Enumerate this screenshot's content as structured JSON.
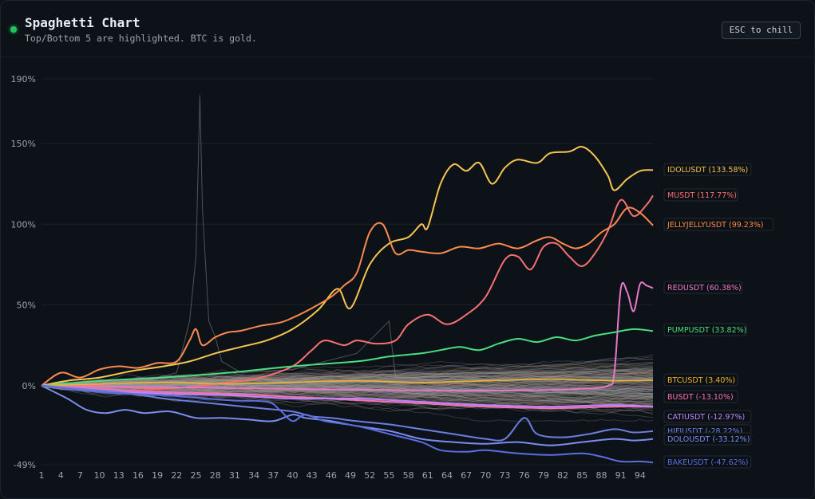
{
  "header": {
    "title": "Spaghetti Chart",
    "subtitle": "Top/Bottom 5 are highlighted. BTC is gold.",
    "esc_label": "ESC to chill"
  },
  "colors": {
    "background": "#0d1218",
    "grid": "#1a232b",
    "axis_text": "#9aa4ae",
    "noise": "#8a8f96"
  },
  "chart_data": {
    "type": "line",
    "title": "Spaghetti Chart",
    "subtitle": "Top/Bottom 5 are highlighted. BTC is gold.",
    "xlabel": "",
    "ylabel": "",
    "xlim": [
      1,
      96
    ],
    "ylim": [
      -49,
      190
    ],
    "x_ticks": [
      1,
      4,
      7,
      10,
      13,
      16,
      19,
      22,
      25,
      28,
      31,
      34,
      37,
      40,
      43,
      46,
      49,
      52,
      55,
      58,
      61,
      64,
      67,
      70,
      73,
      76,
      79,
      82,
      85,
      88,
      91,
      94
    ],
    "y_ticks": [
      {
        "value": 190,
        "label": "190%"
      },
      {
        "value": 150,
        "label": "150%"
      },
      {
        "value": 100,
        "label": "100%"
      },
      {
        "value": 50,
        "label": "50%"
      },
      {
        "value": 0,
        "label": "0%"
      },
      {
        "value": -49,
        "label": "-49%"
      }
    ],
    "grid": true,
    "series": [
      {
        "name": "IDOLUSDT",
        "label": "IDOLUSDT (133.58%)",
        "color": "#f5c451",
        "final": 133.58,
        "points": [
          [
            1,
            0
          ],
          [
            5,
            3
          ],
          [
            10,
            5
          ],
          [
            15,
            9
          ],
          [
            20,
            12
          ],
          [
            24,
            15
          ],
          [
            28,
            20
          ],
          [
            32,
            24
          ],
          [
            36,
            28
          ],
          [
            40,
            35
          ],
          [
            44,
            47
          ],
          [
            47,
            60
          ],
          [
            49,
            48
          ],
          [
            52,
            75
          ],
          [
            55,
            88
          ],
          [
            58,
            92
          ],
          [
            60,
            100
          ],
          [
            61,
            98
          ],
          [
            63,
            125
          ],
          [
            65,
            137
          ],
          [
            67,
            133
          ],
          [
            69,
            138
          ],
          [
            71,
            125
          ],
          [
            73,
            135
          ],
          [
            75,
            140
          ],
          [
            78,
            138
          ],
          [
            80,
            144
          ],
          [
            83,
            145
          ],
          [
            85,
            148
          ],
          [
            87,
            142
          ],
          [
            89,
            130
          ],
          [
            90,
            121
          ],
          [
            92,
            128
          ],
          [
            94,
            133
          ],
          [
            96,
            133.58
          ]
        ]
      },
      {
        "name": "MUSDT",
        "label": "MUSDT (117.77%)",
        "color": "#f87171",
        "final": 117.77,
        "points": [
          [
            1,
            0
          ],
          [
            10,
            0
          ],
          [
            20,
            -2
          ],
          [
            30,
            2
          ],
          [
            35,
            5
          ],
          [
            40,
            12
          ],
          [
            43,
            22
          ],
          [
            45,
            28
          ],
          [
            48,
            25
          ],
          [
            50,
            28
          ],
          [
            53,
            26
          ],
          [
            56,
            28
          ],
          [
            58,
            38
          ],
          [
            61,
            44
          ],
          [
            64,
            38
          ],
          [
            67,
            44
          ],
          [
            70,
            55
          ],
          [
            73,
            78
          ],
          [
            75,
            80
          ],
          [
            77,
            72
          ],
          [
            79,
            86
          ],
          [
            81,
            88
          ],
          [
            83,
            80
          ],
          [
            85,
            74
          ],
          [
            87,
            82
          ],
          [
            89,
            96
          ],
          [
            91,
            115
          ],
          [
            93,
            105
          ],
          [
            95,
            112
          ],
          [
            96,
            117.77
          ]
        ]
      },
      {
        "name": "JELLYJELLYUSDT",
        "label": "JELLYJELLYUSDT (99.23%)",
        "color": "#fb8a4e",
        "final": 99.23,
        "points": [
          [
            1,
            0
          ],
          [
            4,
            8
          ],
          [
            7,
            5
          ],
          [
            10,
            10
          ],
          [
            13,
            12
          ],
          [
            16,
            11
          ],
          [
            19,
            14
          ],
          [
            22,
            15
          ],
          [
            24,
            28
          ],
          [
            25,
            35
          ],
          [
            26,
            25
          ],
          [
            28,
            30
          ],
          [
            30,
            33
          ],
          [
            32,
            34
          ],
          [
            35,
            37
          ],
          [
            38,
            39
          ],
          [
            40,
            42
          ],
          [
            43,
            48
          ],
          [
            46,
            55
          ],
          [
            48,
            62
          ],
          [
            50,
            70
          ],
          [
            52,
            95
          ],
          [
            54,
            100
          ],
          [
            56,
            82
          ],
          [
            58,
            84
          ],
          [
            60,
            83
          ],
          [
            63,
            82
          ],
          [
            66,
            86
          ],
          [
            69,
            85
          ],
          [
            72,
            88
          ],
          [
            75,
            85
          ],
          [
            78,
            90
          ],
          [
            80,
            92
          ],
          [
            82,
            88
          ],
          [
            84,
            85
          ],
          [
            86,
            88
          ],
          [
            88,
            95
          ],
          [
            90,
            100
          ],
          [
            92,
            110
          ],
          [
            94,
            107
          ],
          [
            96,
            99.23
          ]
        ]
      },
      {
        "name": "REDUSDT",
        "label": "REDUSDT (60.38%)",
        "color": "#e879c9",
        "final": 60.38,
        "points": [
          [
            1,
            0
          ],
          [
            20,
            -1
          ],
          [
            40,
            -2
          ],
          [
            60,
            -3
          ],
          [
            75,
            -3
          ],
          [
            85,
            -2
          ],
          [
            89,
            0
          ],
          [
            90,
            8
          ],
          [
            91,
            60
          ],
          [
            92,
            58
          ],
          [
            93,
            46
          ],
          [
            94,
            63
          ],
          [
            95,
            62
          ],
          [
            96,
            60.38
          ]
        ]
      },
      {
        "name": "PUMPUSDT",
        "label": "PUMPUSDT (33.82%)",
        "color": "#4ade80",
        "final": 33.82,
        "points": [
          [
            1,
            0
          ],
          [
            10,
            3
          ],
          [
            20,
            5
          ],
          [
            30,
            8
          ],
          [
            40,
            12
          ],
          [
            50,
            15
          ],
          [
            55,
            18
          ],
          [
            60,
            20
          ],
          [
            63,
            22
          ],
          [
            66,
            24
          ],
          [
            69,
            22
          ],
          [
            72,
            26
          ],
          [
            75,
            29
          ],
          [
            78,
            27
          ],
          [
            81,
            30
          ],
          [
            84,
            28
          ],
          [
            87,
            31
          ],
          [
            90,
            33
          ],
          [
            93,
            35
          ],
          [
            96,
            33.82
          ]
        ]
      },
      {
        "name": "BTCUSDT",
        "label": "BTCUSDT (3.40%)",
        "color": "#f0b429",
        "final": 3.4,
        "points": [
          [
            1,
            0
          ],
          [
            10,
            1
          ],
          [
            20,
            2
          ],
          [
            30,
            1
          ],
          [
            40,
            2
          ],
          [
            50,
            3
          ],
          [
            60,
            2
          ],
          [
            70,
            3
          ],
          [
            80,
            4
          ],
          [
            90,
            3
          ],
          [
            96,
            3.4
          ]
        ]
      },
      {
        "name": "BUSDT",
        "label": "BUSDT (-13.10%)",
        "color": "#f472b6",
        "final": -13.1,
        "points": [
          [
            1,
            0
          ],
          [
            10,
            -2
          ],
          [
            20,
            -4
          ],
          [
            30,
            -5
          ],
          [
            40,
            -7
          ],
          [
            50,
            -9
          ],
          [
            60,
            -11
          ],
          [
            70,
            -13
          ],
          [
            80,
            -14
          ],
          [
            90,
            -13
          ],
          [
            96,
            -13.1
          ]
        ]
      },
      {
        "name": "CATIUSDT",
        "label": "CATIUSDT (-12.97%)",
        "color": "#c084fc",
        "final": -12.97,
        "points": [
          [
            1,
            0
          ],
          [
            10,
            -3
          ],
          [
            20,
            -5
          ],
          [
            30,
            -6
          ],
          [
            40,
            -8
          ],
          [
            50,
            -8
          ],
          [
            60,
            -10
          ],
          [
            70,
            -12
          ],
          [
            80,
            -13
          ],
          [
            90,
            -12
          ],
          [
            96,
            -12.97
          ]
        ]
      },
      {
        "name": "HIFIUSDT",
        "label": "HIFIUSDT (-28.22%)",
        "color": "#6b7fe0",
        "final": -28.22,
        "points": [
          [
            1,
            0
          ],
          [
            10,
            -3
          ],
          [
            15,
            -5
          ],
          [
            20,
            -8
          ],
          [
            25,
            -10
          ],
          [
            30,
            -12
          ],
          [
            35,
            -14
          ],
          [
            40,
            -16
          ],
          [
            43,
            -19
          ],
          [
            46,
            -20
          ],
          [
            50,
            -22
          ],
          [
            55,
            -24
          ],
          [
            60,
            -27
          ],
          [
            65,
            -30
          ],
          [
            70,
            -33
          ],
          [
            73,
            -33
          ],
          [
            76,
            -20
          ],
          [
            78,
            -30
          ],
          [
            82,
            -32
          ],
          [
            86,
            -30
          ],
          [
            90,
            -27
          ],
          [
            93,
            -29
          ],
          [
            96,
            -28.22
          ]
        ]
      },
      {
        "name": "DOLOUSDT",
        "label": "DOLOUSDT (-33.12%)",
        "color": "#7b8cf0",
        "final": -33.12,
        "points": [
          [
            1,
            0
          ],
          [
            5,
            -8
          ],
          [
            8,
            -15
          ],
          [
            11,
            -17
          ],
          [
            14,
            -15
          ],
          [
            17,
            -17
          ],
          [
            21,
            -16
          ],
          [
            25,
            -20
          ],
          [
            29,
            -20
          ],
          [
            33,
            -21
          ],
          [
            37,
            -22
          ],
          [
            40,
            -18
          ],
          [
            42,
            -20
          ],
          [
            46,
            -22
          ],
          [
            50,
            -25
          ],
          [
            55,
            -28
          ],
          [
            60,
            -33
          ],
          [
            65,
            -35
          ],
          [
            70,
            -36
          ],
          [
            75,
            -35
          ],
          [
            80,
            -37
          ],
          [
            85,
            -35
          ],
          [
            90,
            -33
          ],
          [
            93,
            -34
          ],
          [
            96,
            -33.12
          ]
        ]
      },
      {
        "name": "BAKEUSDT",
        "label": "BAKEUSDT (-47.62%)",
        "color": "#5b6ee0",
        "final": -47.62,
        "points": [
          [
            1,
            0
          ],
          [
            10,
            -4
          ],
          [
            20,
            -6
          ],
          [
            30,
            -9
          ],
          [
            36,
            -10
          ],
          [
            38,
            -15
          ],
          [
            40,
            -22
          ],
          [
            42,
            -18
          ],
          [
            45,
            -22
          ],
          [
            50,
            -25
          ],
          [
            55,
            -30
          ],
          [
            60,
            -35
          ],
          [
            63,
            -40
          ],
          [
            67,
            -41
          ],
          [
            70,
            -40
          ],
          [
            75,
            -42
          ],
          [
            80,
            -43
          ],
          [
            85,
            -42
          ],
          [
            88,
            -44
          ],
          [
            91,
            -47
          ],
          [
            94,
            -47
          ],
          [
            96,
            -47.62
          ]
        ]
      }
    ]
  }
}
